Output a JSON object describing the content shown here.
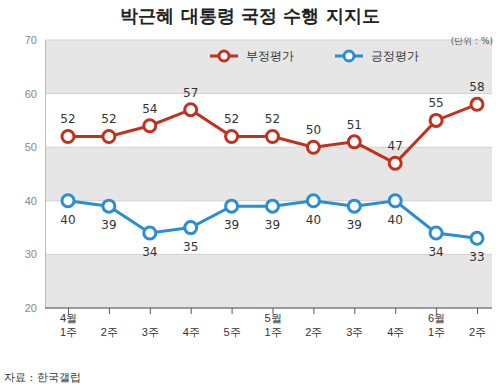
{
  "chart_data": {
    "type": "line",
    "title": "박근혜 대통령 국정 수행 지지도",
    "ylabel": "(단위 : %)",
    "source": "자료 : 한국갤럽",
    "categories": [
      "4월\n1주",
      "2주",
      "3주",
      "4주",
      "5주",
      "5월\n1주",
      "2주",
      "3주",
      "4주",
      "6월\n1주",
      "2주"
    ],
    "series": [
      {
        "name": "부정평가",
        "color": "#c0321e",
        "marker": "circle",
        "values": [
          52,
          52,
          54,
          57,
          52,
          52,
          50,
          51,
          47,
          55,
          58
        ]
      },
      {
        "name": "긍정평가",
        "color": "#2b8ed0",
        "marker": "circle",
        "values": [
          40,
          39,
          34,
          35,
          39,
          39,
          40,
          39,
          40,
          34,
          33
        ]
      }
    ],
    "ylim": [
      20,
      70
    ],
    "yticks": [
      20,
      30,
      40,
      50,
      60,
      70
    ],
    "grid": true,
    "legend": "top-right",
    "data_labels": true
  }
}
